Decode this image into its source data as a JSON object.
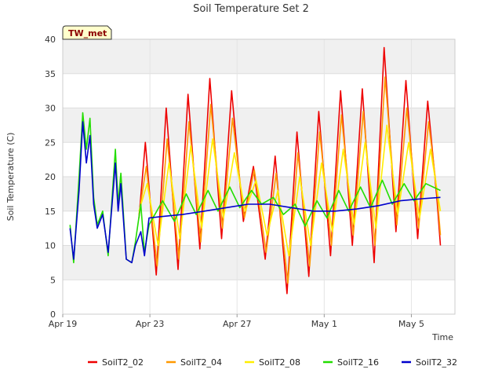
{
  "chart_data": {
    "type": "line",
    "title": "Soil Temperature Set 2",
    "xlabel": "Time",
    "ylabel": "Soil Temperature (C)",
    "badge": "TW_met",
    "ylim": [
      0,
      40
    ],
    "xlim": [
      "2024-04-19",
      "2024-05-07"
    ],
    "yticks": [
      "0",
      "5",
      "10",
      "15",
      "20",
      "25",
      "30",
      "35",
      "40"
    ],
    "xticks": [
      {
        "date": "2024-04-19",
        "label": "Apr 19"
      },
      {
        "date": "2024-04-23",
        "label": "Apr 23"
      },
      {
        "date": "2024-04-27",
        "label": "Apr 27"
      },
      {
        "date": "2024-05-01",
        "label": "May 1"
      },
      {
        "date": "2024-05-05",
        "label": "May 5"
      }
    ],
    "grid": true,
    "legend_position": "bottom",
    "series": [
      {
        "name": "SoilT2_02",
        "color": "#ee0000",
        "points": [
          [
            "2024-04-22 12:00",
            14.0
          ],
          [
            "2024-04-22 19:00",
            25.0
          ],
          [
            "2024-04-23 07:00",
            5.7
          ],
          [
            "2024-04-23 18:00",
            30.0
          ],
          [
            "2024-04-24 07:00",
            6.5
          ],
          [
            "2024-04-24 18:00",
            32.0
          ],
          [
            "2024-04-25 07:00",
            9.5
          ],
          [
            "2024-04-25 18:00",
            34.3
          ],
          [
            "2024-04-26 07:00",
            11.0
          ],
          [
            "2024-04-26 18:00",
            32.5
          ],
          [
            "2024-04-27 07:00",
            13.5
          ],
          [
            "2024-04-27 18:00",
            21.5
          ],
          [
            "2024-04-28 07:00",
            8.0
          ],
          [
            "2024-04-28 18:00",
            23.0
          ],
          [
            "2024-04-29 07:00",
            3.0
          ],
          [
            "2024-04-29 18:00",
            26.5
          ],
          [
            "2024-04-30 07:00",
            5.5
          ],
          [
            "2024-04-30 18:00",
            29.5
          ],
          [
            "2024-05-01 07:00",
            8.5
          ],
          [
            "2024-05-01 18:00",
            32.5
          ],
          [
            "2024-05-02 07:00",
            10.0
          ],
          [
            "2024-05-02 18:00",
            32.8
          ],
          [
            "2024-05-03 07:00",
            7.5
          ],
          [
            "2024-05-03 18:00",
            38.8
          ],
          [
            "2024-05-04 07:00",
            12.0
          ],
          [
            "2024-05-04 18:00",
            34.0
          ],
          [
            "2024-05-05 07:00",
            11.0
          ],
          [
            "2024-05-05 18:00",
            31.0
          ],
          [
            "2024-05-06 04:00",
            17.0
          ],
          [
            "2024-05-06 08:00",
            10.0
          ]
        ]
      },
      {
        "name": "SoilT2_04",
        "color": "#ff9900",
        "points": [
          [
            "2024-04-22 12:00",
            14.5
          ],
          [
            "2024-04-22 20:00",
            21.5
          ],
          [
            "2024-04-23 08:00",
            7.0
          ],
          [
            "2024-04-23 19:00",
            25.5
          ],
          [
            "2024-04-24 08:00",
            8.0
          ],
          [
            "2024-04-24 19:00",
            28.0
          ],
          [
            "2024-04-25 08:00",
            10.5
          ],
          [
            "2024-04-25 19:00",
            30.5
          ],
          [
            "2024-04-26 08:00",
            12.5
          ],
          [
            "2024-04-26 19:00",
            28.5
          ],
          [
            "2024-04-27 08:00",
            14.0
          ],
          [
            "2024-04-27 19:00",
            21.0
          ],
          [
            "2024-04-28 08:00",
            9.0
          ],
          [
            "2024-04-28 19:00",
            20.5
          ],
          [
            "2024-04-29 08:00",
            4.5
          ],
          [
            "2024-04-29 19:00",
            23.5
          ],
          [
            "2024-04-30 08:00",
            7.0
          ],
          [
            "2024-04-30 19:00",
            26.5
          ],
          [
            "2024-05-01 08:00",
            10.0
          ],
          [
            "2024-05-01 19:00",
            29.0
          ],
          [
            "2024-05-02 08:00",
            11.5
          ],
          [
            "2024-05-02 19:00",
            29.5
          ],
          [
            "2024-05-03 08:00",
            10.0
          ],
          [
            "2024-05-03 19:00",
            34.5
          ],
          [
            "2024-05-04 08:00",
            13.0
          ],
          [
            "2024-05-04 19:00",
            30.0
          ],
          [
            "2024-05-05 08:00",
            12.5
          ],
          [
            "2024-05-05 19:00",
            28.0
          ],
          [
            "2024-05-06 04:00",
            18.0
          ],
          [
            "2024-05-06 08:00",
            11.5
          ]
        ]
      },
      {
        "name": "SoilT2_08",
        "color": "#ffee00",
        "points": [
          [
            "2024-04-22 12:00",
            15.0
          ],
          [
            "2024-04-22 21:00",
            19.0
          ],
          [
            "2024-04-23 09:00",
            10.0
          ],
          [
            "2024-04-23 21:00",
            22.0
          ],
          [
            "2024-04-24 09:00",
            11.0
          ],
          [
            "2024-04-24 21:00",
            24.5
          ],
          [
            "2024-04-25 09:00",
            12.5
          ],
          [
            "2024-04-25 21:00",
            25.5
          ],
          [
            "2024-04-26 09:00",
            14.0
          ],
          [
            "2024-04-26 21:00",
            23.5
          ],
          [
            "2024-04-27 09:00",
            15.0
          ],
          [
            "2024-04-27 21:00",
            19.5
          ],
          [
            "2024-04-28 09:00",
            11.5
          ],
          [
            "2024-04-28 21:00",
            18.0
          ],
          [
            "2024-04-29 09:00",
            8.5
          ],
          [
            "2024-04-29 21:00",
            20.0
          ],
          [
            "2024-04-30 09:00",
            10.0
          ],
          [
            "2024-04-30 21:00",
            22.0
          ],
          [
            "2024-05-01 09:00",
            12.0
          ],
          [
            "2024-05-01 21:00",
            24.0
          ],
          [
            "2024-05-02 09:00",
            13.0
          ],
          [
            "2024-05-02 21:00",
            25.0
          ],
          [
            "2024-05-03 09:00",
            12.5
          ],
          [
            "2024-05-03 21:00",
            27.5
          ],
          [
            "2024-05-04 09:00",
            14.5
          ],
          [
            "2024-05-04 21:00",
            25.0
          ],
          [
            "2024-05-05 09:00",
            14.0
          ],
          [
            "2024-05-05 21:00",
            24.0
          ],
          [
            "2024-05-06 08:00",
            15.0
          ]
        ]
      },
      {
        "name": "SoilT2_16",
        "color": "#22dd00",
        "points": [
          [
            "2024-04-19 08:00",
            13.0
          ],
          [
            "2024-04-19 12:00",
            7.5
          ],
          [
            "2024-04-19 18:00",
            20.0
          ],
          [
            "2024-04-19 22:00",
            29.3
          ],
          [
            "2024-04-20 02:00",
            24.0
          ],
          [
            "2024-04-20 06:00",
            28.5
          ],
          [
            "2024-04-20 10:00",
            17.0
          ],
          [
            "2024-04-20 14:00",
            13.0
          ],
          [
            "2024-04-20 20:00",
            15.0
          ],
          [
            "2024-04-21 02:00",
            8.5
          ],
          [
            "2024-04-21 10:00",
            24.0
          ],
          [
            "2024-04-21 13:00",
            16.0
          ],
          [
            "2024-04-21 16:00",
            20.5
          ],
          [
            "2024-04-21 22:00",
            8.0
          ],
          [
            "2024-04-22 04:00",
            7.5
          ],
          [
            "2024-04-22 08:00",
            10.5
          ],
          [
            "2024-04-22 14:00",
            16.0
          ],
          [
            "2024-04-22 18:00",
            9.0
          ],
          [
            "2024-04-22 23:00",
            13.0
          ],
          [
            "2024-04-23 14:00",
            16.5
          ],
          [
            "2024-04-24 03:00",
            13.5
          ],
          [
            "2024-04-24 16:00",
            17.5
          ],
          [
            "2024-04-25 03:00",
            14.5
          ],
          [
            "2024-04-25 16:00",
            18.0
          ],
          [
            "2024-04-26 03:00",
            15.0
          ],
          [
            "2024-04-26 16:00",
            18.5
          ],
          [
            "2024-04-27 03:00",
            15.5
          ],
          [
            "2024-04-27 16:00",
            18.0
          ],
          [
            "2024-04-28 03:00",
            16.0
          ],
          [
            "2024-04-28 16:00",
            17.0
          ],
          [
            "2024-04-29 03:00",
            14.5
          ],
          [
            "2024-04-29 16:00",
            16.0
          ],
          [
            "2024-04-30 03:00",
            12.8
          ],
          [
            "2024-04-30 16:00",
            16.5
          ],
          [
            "2024-05-01 03:00",
            14.0
          ],
          [
            "2024-05-01 16:00",
            18.0
          ],
          [
            "2024-05-02 03:00",
            15.0
          ],
          [
            "2024-05-02 16:00",
            18.5
          ],
          [
            "2024-05-03 03:00",
            15.5
          ],
          [
            "2024-05-03 16:00",
            19.5
          ],
          [
            "2024-05-04 03:00",
            16.0
          ],
          [
            "2024-05-04 16:00",
            19.0
          ],
          [
            "2024-05-05 03:00",
            16.5
          ],
          [
            "2024-05-05 16:00",
            19.0
          ],
          [
            "2024-05-06 08:00",
            18.0
          ]
        ]
      },
      {
        "name": "SoilT2_32",
        "color": "#0000cc",
        "points": [
          [
            "2024-04-19 08:00",
            12.5
          ],
          [
            "2024-04-19 12:00",
            8.0
          ],
          [
            "2024-04-19 18:00",
            18.0
          ],
          [
            "2024-04-19 22:00",
            28.0
          ],
          [
            "2024-04-20 02:00",
            22.0
          ],
          [
            "2024-04-20 06:00",
            26.0
          ],
          [
            "2024-04-20 10:00",
            16.0
          ],
          [
            "2024-04-20 14:00",
            12.5
          ],
          [
            "2024-04-20 20:00",
            14.5
          ],
          [
            "2024-04-21 02:00",
            9.0
          ],
          [
            "2024-04-21 10:00",
            22.0
          ],
          [
            "2024-04-21 13:00",
            15.0
          ],
          [
            "2024-04-21 16:00",
            19.0
          ],
          [
            "2024-04-21 22:00",
            8.0
          ],
          [
            "2024-04-22 04:00",
            7.5
          ],
          [
            "2024-04-22 08:00",
            10.0
          ],
          [
            "2024-04-22 14:00",
            12.0
          ],
          [
            "2024-04-22 18:00",
            8.5
          ],
          [
            "2024-04-22 23:00",
            14.0
          ],
          [
            "2024-04-23 12:00",
            14.2
          ],
          [
            "2024-04-24 12:00",
            14.5
          ],
          [
            "2024-04-25 12:00",
            15.0
          ],
          [
            "2024-04-26 12:00",
            15.5
          ],
          [
            "2024-04-27 12:00",
            16.0
          ],
          [
            "2024-04-28 12:00",
            16.0
          ],
          [
            "2024-04-29 12:00",
            15.5
          ],
          [
            "2024-04-30 12:00",
            15.0
          ],
          [
            "2024-05-01 12:00",
            15.0
          ],
          [
            "2024-05-02 12:00",
            15.3
          ],
          [
            "2024-05-03 12:00",
            15.8
          ],
          [
            "2024-05-04 12:00",
            16.5
          ],
          [
            "2024-05-05 12:00",
            16.8
          ],
          [
            "2024-05-06 08:00",
            17.0
          ]
        ]
      }
    ]
  }
}
